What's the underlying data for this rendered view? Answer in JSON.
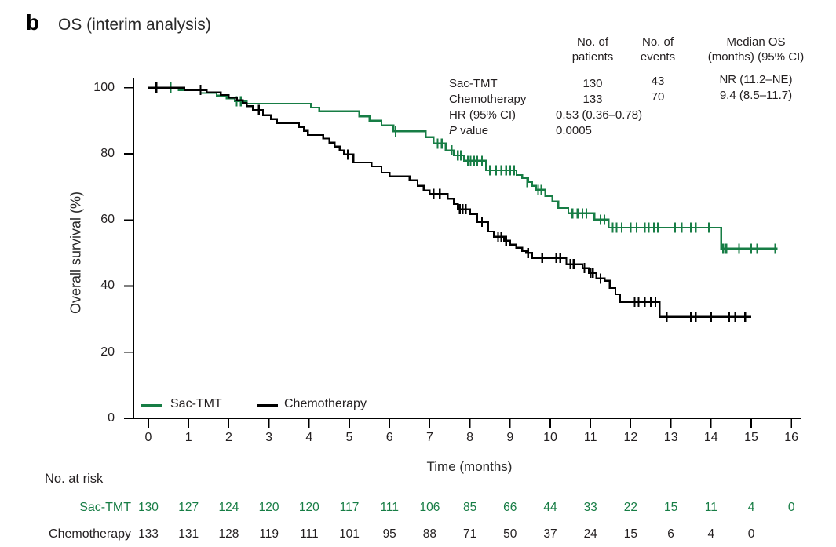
{
  "panel": {
    "label": "b",
    "title": "OS (interim analysis)"
  },
  "colors": {
    "sac_tmt_green": "#177d45",
    "chemotherapy_black": "#000000",
    "text": "#231f20"
  },
  "stats_table": {
    "col_headers": [
      "No. of\npatients",
      "No. of\nevents",
      "Median OS\n(months) (95% CI)"
    ],
    "rows": [
      {
        "label": "Sac-TMT",
        "patients": "130",
        "events": "43",
        "median": "NR (11.2–NE)"
      },
      {
        "label": "Chemotherapy",
        "patients": "133",
        "events": "70",
        "median": "9.4 (8.5–11.7)"
      }
    ],
    "hr_label": "HR (95% CI)",
    "hr_value": "0.53 (0.36–0.78)",
    "p_label_italic": "P",
    "p_label_rest": " value",
    "p_value": "0.0005"
  },
  "chart_data": {
    "type": "line",
    "subtype": "kaplan-meier-step",
    "title": "OS (interim analysis)",
    "xlabel": "Time (months)",
    "ylabel": "Overall survival (%)",
    "xlim": [
      0,
      16
    ],
    "ylim": [
      0,
      100
    ],
    "xticks": [
      0,
      1,
      2,
      3,
      4,
      5,
      6,
      7,
      8,
      9,
      10,
      11,
      12,
      13,
      14,
      15,
      16
    ],
    "yticks": [
      0,
      20,
      40,
      60,
      80,
      100
    ],
    "grid": false,
    "legend_position": "bottom-left-inside",
    "series": [
      {
        "name": "Sac-TMT",
        "color": "#177d45",
        "end": 15.65,
        "steps": [
          [
            0,
            100
          ],
          [
            0.75,
            99.2
          ],
          [
            1.3,
            98.4
          ],
          [
            1.7,
            97.6
          ],
          [
            1.95,
            96.8
          ],
          [
            2.15,
            95.9
          ],
          [
            2.45,
            95.2
          ],
          [
            4.05,
            94.0
          ],
          [
            4.25,
            92.9
          ],
          [
            5.25,
            91.3
          ],
          [
            5.5,
            90.0
          ],
          [
            5.8,
            88.6
          ],
          [
            6.1,
            86.8
          ],
          [
            6.9,
            85.0
          ],
          [
            7.1,
            83.1
          ],
          [
            7.4,
            81.0
          ],
          [
            7.6,
            79.5
          ],
          [
            7.85,
            77.9
          ],
          [
            8.4,
            75.0
          ],
          [
            9.16,
            73.6
          ],
          [
            9.3,
            72.7
          ],
          [
            9.45,
            71.5
          ],
          [
            9.55,
            70.3
          ],
          [
            9.65,
            69.1
          ],
          [
            9.88,
            67.2
          ],
          [
            10.05,
            65.6
          ],
          [
            10.2,
            63.6
          ],
          [
            10.45,
            62.0
          ],
          [
            11.1,
            60.1
          ],
          [
            11.45,
            57.7
          ],
          [
            14.25,
            51.3
          ]
        ],
        "censors": [
          [
            0.55,
            100
          ],
          [
            2.2,
            95.9
          ],
          [
            2.3,
            95.9
          ],
          [
            6.15,
            86.8
          ],
          [
            7.2,
            83.1
          ],
          [
            7.3,
            83.1
          ],
          [
            7.55,
            81.0
          ],
          [
            7.7,
            79.5
          ],
          [
            7.78,
            79.5
          ],
          [
            7.95,
            77.9
          ],
          [
            8.02,
            77.9
          ],
          [
            8.1,
            77.9
          ],
          [
            8.18,
            77.9
          ],
          [
            8.3,
            77.9
          ],
          [
            8.5,
            75.0
          ],
          [
            8.65,
            75.0
          ],
          [
            8.78,
            75.0
          ],
          [
            8.9,
            75.0
          ],
          [
            9.0,
            75.0
          ],
          [
            9.1,
            75.0
          ],
          [
            9.43,
            71.5
          ],
          [
            9.7,
            69.1
          ],
          [
            9.78,
            69.1
          ],
          [
            10.55,
            62.0
          ],
          [
            10.68,
            62.0
          ],
          [
            10.8,
            62.0
          ],
          [
            10.9,
            62.0
          ],
          [
            11.25,
            60.1
          ],
          [
            11.35,
            60.1
          ],
          [
            11.55,
            57.7
          ],
          [
            11.65,
            57.7
          ],
          [
            11.78,
            57.7
          ],
          [
            12.0,
            57.7
          ],
          [
            12.15,
            57.7
          ],
          [
            12.35,
            57.7
          ],
          [
            12.45,
            57.7
          ],
          [
            12.58,
            57.7
          ],
          [
            12.68,
            57.7
          ],
          [
            13.1,
            57.7
          ],
          [
            13.27,
            57.7
          ],
          [
            13.5,
            57.7
          ],
          [
            13.62,
            57.7
          ],
          [
            13.95,
            57.7
          ],
          [
            14.3,
            51.3
          ],
          [
            14.38,
            51.3
          ],
          [
            14.7,
            51.3
          ],
          [
            15.0,
            51.3
          ],
          [
            15.15,
            51.3
          ],
          [
            15.6,
            51.3
          ]
        ]
      },
      {
        "name": "Chemotherapy",
        "color": "#000000",
        "end": 15.0,
        "steps": [
          [
            0,
            100
          ],
          [
            0.9,
            99.3
          ],
          [
            1.45,
            98.6
          ],
          [
            1.8,
            97.8
          ],
          [
            2.0,
            97.0
          ],
          [
            2.2,
            96.2
          ],
          [
            2.35,
            95.4
          ],
          [
            2.45,
            94.4
          ],
          [
            2.6,
            93.3
          ],
          [
            2.85,
            91.7
          ],
          [
            3.05,
            90.5
          ],
          [
            3.2,
            89.3
          ],
          [
            3.75,
            88.1
          ],
          [
            3.87,
            86.9
          ],
          [
            3.97,
            85.7
          ],
          [
            4.35,
            84.6
          ],
          [
            4.5,
            83.4
          ],
          [
            4.64,
            82.2
          ],
          [
            4.76,
            81.0
          ],
          [
            4.87,
            79.8
          ],
          [
            5.1,
            77.4
          ],
          [
            5.55,
            76.2
          ],
          [
            5.8,
            74.3
          ],
          [
            6.0,
            73.2
          ],
          [
            6.5,
            72.0
          ],
          [
            6.7,
            70.3
          ],
          [
            6.85,
            68.9
          ],
          [
            7.0,
            67.9
          ],
          [
            7.45,
            66.4
          ],
          [
            7.6,
            64.8
          ],
          [
            7.7,
            63.2
          ],
          [
            8.0,
            61.7
          ],
          [
            8.18,
            59.4
          ],
          [
            8.45,
            56.5
          ],
          [
            8.6,
            54.9
          ],
          [
            8.85,
            53.7
          ],
          [
            9.0,
            52.5
          ],
          [
            9.15,
            51.6
          ],
          [
            9.3,
            50.6
          ],
          [
            9.4,
            50.0
          ],
          [
            9.55,
            48.5
          ],
          [
            10.4,
            46.6
          ],
          [
            10.8,
            45.4
          ],
          [
            10.96,
            44.0
          ],
          [
            11.15,
            42.3
          ],
          [
            11.35,
            41.6
          ],
          [
            11.48,
            39.4
          ],
          [
            11.62,
            37.5
          ],
          [
            11.74,
            35.2
          ],
          [
            12.72,
            30.7
          ]
        ],
        "censors": [
          [
            0.2,
            100
          ],
          [
            1.3,
            99.3
          ],
          [
            2.75,
            93.3
          ],
          [
            4.96,
            79.8
          ],
          [
            7.1,
            67.9
          ],
          [
            7.25,
            67.9
          ],
          [
            7.75,
            63.2
          ],
          [
            7.82,
            63.2
          ],
          [
            7.9,
            63.2
          ],
          [
            8.3,
            59.4
          ],
          [
            8.7,
            54.9
          ],
          [
            8.78,
            54.9
          ],
          [
            8.9,
            53.7
          ],
          [
            9.45,
            50.0
          ],
          [
            9.8,
            48.5
          ],
          [
            10.15,
            48.5
          ],
          [
            10.25,
            48.5
          ],
          [
            10.5,
            46.6
          ],
          [
            10.58,
            46.6
          ],
          [
            10.85,
            45.4
          ],
          [
            11.0,
            44.0
          ],
          [
            11.06,
            44.0
          ],
          [
            11.25,
            42.3
          ],
          [
            12.1,
            35.2
          ],
          [
            12.2,
            35.2
          ],
          [
            12.35,
            35.2
          ],
          [
            12.5,
            35.2
          ],
          [
            12.62,
            35.2
          ],
          [
            12.9,
            30.7
          ],
          [
            13.5,
            30.7
          ],
          [
            13.62,
            30.7
          ],
          [
            14.0,
            30.7
          ],
          [
            14.45,
            30.7
          ],
          [
            14.6,
            30.7
          ],
          [
            14.85,
            30.7
          ]
        ]
      }
    ]
  },
  "at_risk": {
    "title": "No. at risk",
    "rows": [
      {
        "label": "Sac-TMT",
        "color": "#177d45",
        "values": [
          "130",
          "127",
          "124",
          "120",
          "120",
          "117",
          "111",
          "106",
          "85",
          "66",
          "44",
          "33",
          "22",
          "15",
          "11",
          "4",
          "0"
        ]
      },
      {
        "label": "Chemotherapy",
        "color": "#231f20",
        "values": [
          "133",
          "131",
          "128",
          "119",
          "111",
          "101",
          "95",
          "88",
          "71",
          "50",
          "37",
          "24",
          "15",
          "6",
          "4",
          "0"
        ]
      }
    ]
  }
}
